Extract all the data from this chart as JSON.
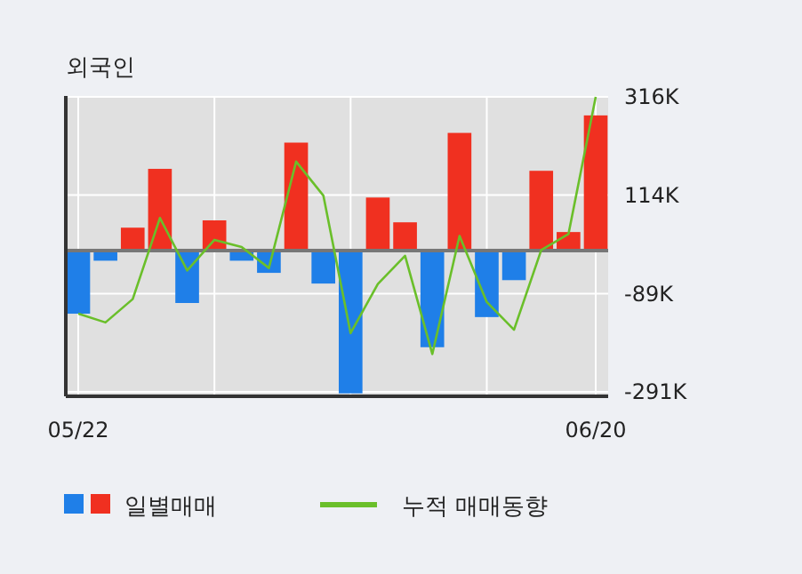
{
  "chart_data": {
    "type": "bar",
    "title": "외국인",
    "categories": [
      "05/22",
      null,
      null,
      null,
      null,
      null,
      null,
      null,
      null,
      null,
      null,
      null,
      null,
      null,
      null,
      null,
      null,
      null,
      null,
      "06/20"
    ],
    "series": [
      {
        "name": "일별매매",
        "values": [
          -130000,
          -21000,
          47000,
          168000,
          -108000,
          62000,
          -21000,
          -46000,
          222000,
          -68000,
          -294000,
          109000,
          58000,
          -199000,
          242000,
          -137000,
          -61000,
          164000,
          38000,
          278000
        ],
        "colors": [
          "#1f7fe8",
          "#1f7fe8",
          "#f03020",
          "#f03020",
          "#1f7fe8",
          "#f03020",
          "#1f7fe8",
          "#1f7fe8",
          "#f03020",
          "#1f7fe8",
          "#1f7fe8",
          "#f03020",
          "#f03020",
          "#1f7fe8",
          "#f03020",
          "#1f7fe8",
          "#1f7fe8",
          "#f03020",
          "#f03020",
          "#f03020"
        ]
      },
      {
        "name": "누적 매매동향",
        "type": "line",
        "color": "#6abf2a",
        "values": [
          -130000,
          -148000,
          -100000,
          67000,
          -41000,
          22000,
          7000,
          -36000,
          183000,
          113000,
          -170000,
          -69000,
          -11000,
          -213000,
          30000,
          -106000,
          -163000,
          1000,
          34000,
          316000
        ]
      }
    ],
    "ylim": [
      -300000,
      318000
    ],
    "yticks": [
      {
        "value": 316000,
        "label": "316K"
      },
      {
        "value": 114000,
        "label": "114K"
      },
      {
        "value": -89000,
        "label": "-89K"
      },
      {
        "value": -291000,
        "label": "-291K"
      }
    ],
    "grid": true,
    "legend": "bottom"
  }
}
